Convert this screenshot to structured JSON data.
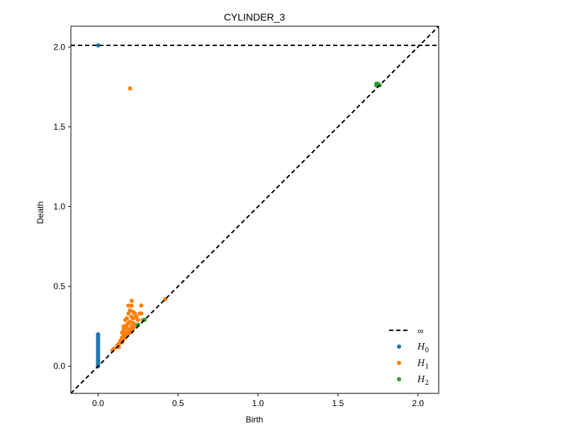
{
  "chart_data": {
    "type": "scatter",
    "title": "CYLINDER_3",
    "xlabel": "Birth",
    "ylabel": "Death",
    "xlim": [
      -0.17,
      2.13
    ],
    "ylim": [
      -0.17,
      2.13
    ],
    "xticks": [
      "0.0",
      "0.5",
      "1.0",
      "1.5",
      "2.0"
    ],
    "yticks": [
      "0.0",
      "0.5",
      "1.0",
      "1.5",
      "2.0"
    ],
    "infinity_line": 2.01,
    "legend_position": "lower-right",
    "series": [
      {
        "name": "H0",
        "label_base": "H",
        "label_sub": "0",
        "color": "#1f77b4",
        "points": [
          [
            0,
            2.01
          ],
          [
            0,
            0.0
          ],
          [
            0,
            0.01
          ],
          [
            0,
            0.02
          ],
          [
            0,
            0.03
          ],
          [
            0,
            0.04
          ],
          [
            0,
            0.05
          ],
          [
            0,
            0.06
          ],
          [
            0,
            0.07
          ],
          [
            0,
            0.08
          ],
          [
            0,
            0.09
          ],
          [
            0,
            0.1
          ],
          [
            0,
            0.11
          ],
          [
            0,
            0.12
          ],
          [
            0,
            0.13
          ],
          [
            0,
            0.14
          ],
          [
            0,
            0.15
          ],
          [
            0,
            0.16
          ],
          [
            0,
            0.17
          ],
          [
            0,
            0.18
          ],
          [
            0,
            0.19
          ],
          [
            0,
            0.2
          ]
        ]
      },
      {
        "name": "H1",
        "label_base": "H",
        "label_sub": "1",
        "color": "#ff7f0e",
        "points": [
          [
            0.2,
            1.74
          ],
          [
            0.42,
            0.42
          ],
          [
            0.21,
            0.41
          ],
          [
            0.19,
            0.38
          ],
          [
            0.21,
            0.38
          ],
          [
            0.27,
            0.38
          ],
          [
            0.2,
            0.35
          ],
          [
            0.22,
            0.34
          ],
          [
            0.19,
            0.33
          ],
          [
            0.23,
            0.33
          ],
          [
            0.26,
            0.33
          ],
          [
            0.27,
            0.33
          ],
          [
            0.21,
            0.31
          ],
          [
            0.24,
            0.31
          ],
          [
            0.18,
            0.3
          ],
          [
            0.22,
            0.3
          ],
          [
            0.17,
            0.29
          ],
          [
            0.2,
            0.28
          ],
          [
            0.25,
            0.29
          ],
          [
            0.28,
            0.29
          ],
          [
            0.19,
            0.27
          ],
          [
            0.22,
            0.27
          ],
          [
            0.16,
            0.25
          ],
          [
            0.18,
            0.26
          ],
          [
            0.21,
            0.25
          ],
          [
            0.23,
            0.26
          ],
          [
            0.16,
            0.23
          ],
          [
            0.18,
            0.24
          ],
          [
            0.2,
            0.23
          ],
          [
            0.22,
            0.24
          ],
          [
            0.15,
            0.21
          ],
          [
            0.17,
            0.21
          ],
          [
            0.19,
            0.22
          ],
          [
            0.21,
            0.22
          ],
          [
            0.16,
            0.19
          ],
          [
            0.18,
            0.2
          ],
          [
            0.2,
            0.21
          ],
          [
            0.15,
            0.18
          ],
          [
            0.17,
            0.18
          ],
          [
            0.14,
            0.16
          ],
          [
            0.16,
            0.17
          ],
          [
            0.13,
            0.14
          ],
          [
            0.15,
            0.15
          ],
          [
            0.12,
            0.13
          ],
          [
            0.13,
            0.12
          ],
          [
            0.1,
            0.11
          ],
          [
            0.09,
            0.1
          ],
          [
            0.24,
            0.25
          ]
        ]
      },
      {
        "name": "H2",
        "label_base": "H",
        "label_sub": "2",
        "color": "#2ca02c",
        "points": [
          [
            1.74,
            1.77
          ],
          [
            1.75,
            1.76
          ],
          [
            1.76,
            1.76
          ],
          [
            1.74,
            1.76
          ],
          [
            1.75,
            1.77
          ],
          [
            0.29,
            0.29
          ],
          [
            0.25,
            0.26
          ]
        ]
      }
    ],
    "infinity_label": "∞"
  }
}
